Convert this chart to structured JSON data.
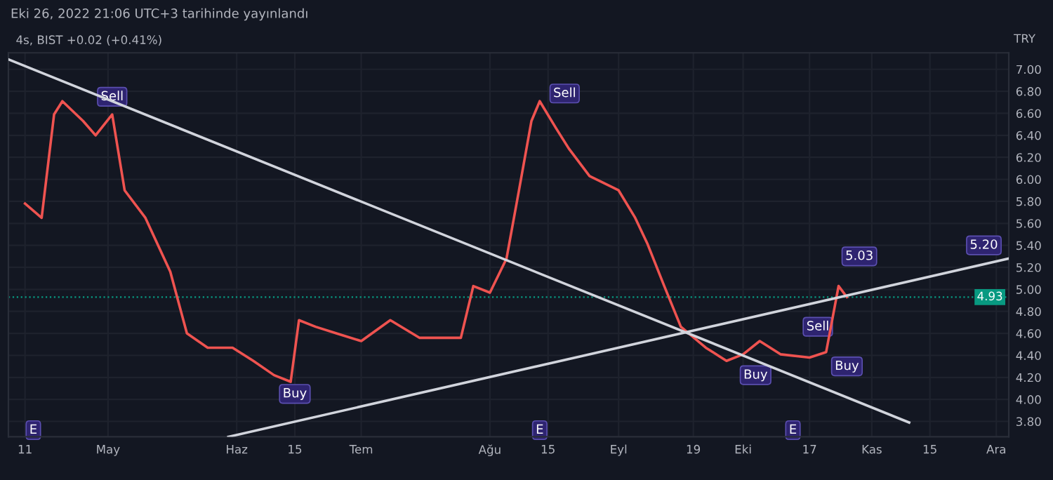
{
  "chart_data": {
    "type": "line",
    "title": "Eki 26, 2022 21:06 UTC+3 tarihinde yayınlandı",
    "subtitle": "4s, BIST +0.02 (+0.41%)",
    "ylabel": "TRY",
    "series": [
      {
        "color": "#ef5350",
        "x": [
          "2022-04-11",
          "2022-04-15",
          "2022-04-18",
          "2022-04-20",
          "2022-04-25",
          "2022-04-28",
          "2022-05-02",
          "2022-05-05",
          "2022-05-10",
          "2022-05-16",
          "2022-05-20",
          "2022-05-25",
          "2022-05-31",
          "2022-06-05",
          "2022-06-10",
          "2022-06-14",
          "2022-06-16",
          "2022-06-20",
          "2022-06-25",
          "2022-07-01",
          "2022-07-08",
          "2022-07-15",
          "2022-07-25",
          "2022-07-28",
          "2022-08-01",
          "2022-08-05",
          "2022-08-08",
          "2022-08-11",
          "2022-08-13",
          "2022-08-17",
          "2022-08-20",
          "2022-08-25",
          "2022-09-01",
          "2022-09-05",
          "2022-09-08",
          "2022-09-12",
          "2022-09-16",
          "2022-09-22",
          "2022-09-27",
          "2022-10-01",
          "2022-10-05",
          "2022-10-10",
          "2022-10-17",
          "2022-10-21",
          "2022-10-24",
          "2022-10-26"
        ],
        "values": [
          5.78,
          5.65,
          6.59,
          6.71,
          6.53,
          6.4,
          6.59,
          5.9,
          5.65,
          5.16,
          4.6,
          4.47,
          4.47,
          4.35,
          4.22,
          4.16,
          4.72,
          4.66,
          4.6,
          4.53,
          4.72,
          4.56,
          4.56,
          5.03,
          4.97,
          5.28,
          5.9,
          6.53,
          6.71,
          6.46,
          6.28,
          6.03,
          5.9,
          5.65,
          5.41,
          5.03,
          4.66,
          4.47,
          4.35,
          4.41,
          4.53,
          4.41,
          4.38,
          4.43,
          5.03,
          4.93
        ]
      },
      {
        "type": "line",
        "color": "#d1d4dc",
        "x": [
          "2022-04-07",
          "2022-11-10"
        ],
        "values": [
          7.09,
          3.79
        ]
      },
      {
        "type": "line",
        "color": "#d1d4dc",
        "x": [
          "2022-05-30",
          "2022-12-04"
        ],
        "values": [
          3.66,
          5.28
        ]
      }
    ],
    "annotations": [
      {
        "text": "Sell",
        "x": "2022-05-02",
        "y": 6.75
      },
      {
        "text": "Buy",
        "x": "2022-06-15",
        "y": 4.05
      },
      {
        "text": "Sell",
        "x": "2022-08-19",
        "y": 6.78
      },
      {
        "text": "Buy",
        "x": "2022-10-04",
        "y": 4.22
      },
      {
        "text": "Sell",
        "x": "2022-10-19",
        "y": 4.66
      },
      {
        "text": "Buy",
        "x": "2022-10-26",
        "y": 4.3
      },
      {
        "text": "5.03",
        "x": "2022-10-29",
        "y": 5.3
      },
      {
        "text": "5.20",
        "x": "2022-11-28",
        "y": 5.4
      },
      {
        "text": "E",
        "x": "2022-04-13",
        "y": 3.72
      },
      {
        "text": "E",
        "x": "2022-08-13",
        "y": 3.72
      },
      {
        "text": "E",
        "x": "2022-10-13",
        "y": 3.72
      }
    ],
    "ref_lines": [
      {
        "axis": "y",
        "value": 4.93,
        "label": "4.93",
        "color": "#089981",
        "line_style": "dotted"
      }
    ],
    "xlim": [
      "2022-04-07",
      "2022-12-04"
    ],
    "xticks": [
      {
        "value": "2022-04-11",
        "label": "11"
      },
      {
        "value": "2022-05-01",
        "label": "May"
      },
      {
        "value": "2022-06-01",
        "label": "Haz"
      },
      {
        "value": "2022-06-15",
        "label": "15"
      },
      {
        "value": "2022-07-01",
        "label": "Tem"
      },
      {
        "value": "2022-08-01",
        "label": "Ağu"
      },
      {
        "value": "2022-08-15",
        "label": "15"
      },
      {
        "value": "2022-09-01",
        "label": "Eyl"
      },
      {
        "value": "2022-09-19",
        "label": "19"
      },
      {
        "value": "2022-10-01",
        "label": "Eki"
      },
      {
        "value": "2022-10-17",
        "label": "17"
      },
      {
        "value": "2022-11-01",
        "label": "Kas"
      },
      {
        "value": "2022-11-15",
        "label": "15"
      },
      {
        "value": "2022-12-01",
        "label": "Ara"
      }
    ],
    "ylim": [
      3.66,
      7.15
    ],
    "yticks": [
      {
        "value": 3.8,
        "label": "3.80"
      },
      {
        "value": 4.0,
        "label": "4.00"
      },
      {
        "value": 4.2,
        "label": "4.20"
      },
      {
        "value": 4.4,
        "label": "4.40"
      },
      {
        "value": 4.6,
        "label": "4.60"
      },
      {
        "value": 4.8,
        "label": "4.80"
      },
      {
        "value": 5.0,
        "label": "5.00"
      },
      {
        "value": 5.2,
        "label": "5.20"
      },
      {
        "value": 5.4,
        "label": "5.40"
      },
      {
        "value": 5.6,
        "label": "5.60"
      },
      {
        "value": 5.8,
        "label": "5.80"
      },
      {
        "value": 6.0,
        "label": "6.00"
      },
      {
        "value": 6.2,
        "label": "6.20"
      },
      {
        "value": 6.4,
        "label": "6.40"
      },
      {
        "value": 6.6,
        "label": "6.60"
      },
      {
        "value": 6.8,
        "label": "6.80"
      },
      {
        "value": 7.0,
        "label": "7.00"
      }
    ],
    "grid": true,
    "legend": false,
    "marker": "none"
  }
}
